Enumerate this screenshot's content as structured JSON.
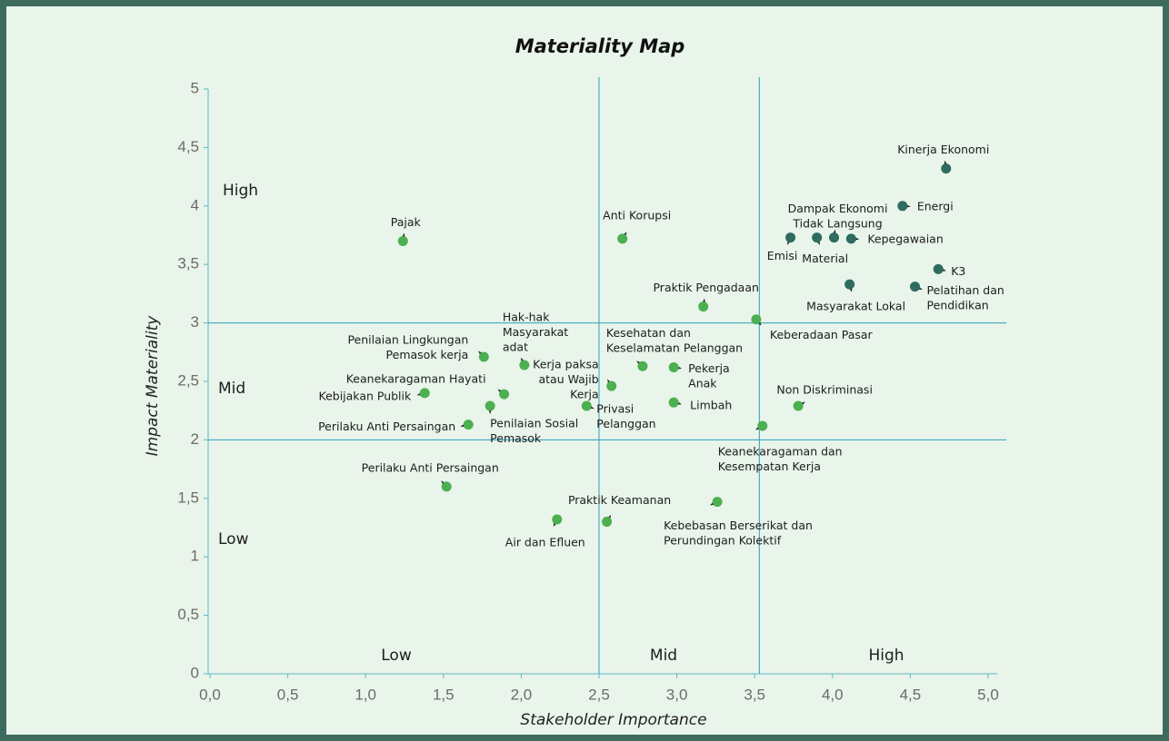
{
  "chart_data": {
    "type": "scatter",
    "title": "Materiality Map",
    "x_label": "Stakeholder Importance",
    "y_label": "Impact Materiality",
    "xlim": [
      0,
      5
    ],
    "ylim": [
      0,
      5
    ],
    "xticks": [
      {
        "value": 0,
        "label": "0,0"
      },
      {
        "value": 0.5,
        "label": "0,5"
      },
      {
        "value": 1,
        "label": "1,0"
      },
      {
        "value": 1.5,
        "label": "1,5"
      },
      {
        "value": 2,
        "label": "2,0"
      },
      {
        "value": 2.5,
        "label": "2,5"
      },
      {
        "value": 3,
        "label": "3,0"
      },
      {
        "value": 3.5,
        "label": "3,5"
      },
      {
        "value": 4,
        "label": "4,0"
      },
      {
        "value": 4.5,
        "label": "4,5"
      },
      {
        "value": 5,
        "label": "5,0"
      }
    ],
    "yticks": [
      0,
      {
        "value": 0.5,
        "label": "0,5"
      },
      1,
      {
        "value": 1.5,
        "label": "1,5"
      },
      2,
      {
        "value": 2.5,
        "label": "2,5"
      },
      3,
      {
        "value": 3.5,
        "label": "3,5"
      },
      4,
      {
        "value": 4.5,
        "label": "4,5"
      },
      5
    ],
    "dividers_x": [
      2.5,
      3.53
    ],
    "dividers_y": [
      2,
      3
    ],
    "zones_y": [
      "High",
      "Mid",
      "Low"
    ],
    "zones_x": [
      "Low",
      "Mid",
      "High"
    ],
    "series": [
      {
        "color": "#2f6b5f",
        "x": [
          4.73,
          4.45,
          4.01,
          4.12,
          3.73,
          3.9,
          4.68,
          4.11,
          4.53
        ],
        "values": [
          4.32,
          4.0,
          3.73,
          3.72,
          3.73,
          3.73,
          3.46,
          3.33,
          3.31
        ],
        "labels": [
          [
            "Kinerja Ekonomi"
          ],
          [
            "Energi"
          ],
          [
            "Dampak Ekonomi",
            "Tidak Langsung"
          ],
          [
            "Kepegawaian"
          ],
          [
            "Emisi"
          ],
          [
            "Material"
          ],
          [
            "K3"
          ],
          [
            "Masyarakat Lokal"
          ],
          [
            "Pelatihan dan",
            "Pendidikan"
          ]
        ]
      },
      {
        "color": "#4caf50",
        "x": [
          1.24,
          2.65,
          3.17,
          3.51,
          1.76,
          2.02,
          2.78,
          2.98,
          1.89,
          1.38,
          2.58,
          2.42,
          2.98,
          1.8,
          3.78,
          1.66,
          3.55,
          1.52,
          3.26,
          2.23,
          2.55
        ],
        "values": [
          3.7,
          3.72,
          3.14,
          3.03,
          2.71,
          2.64,
          2.63,
          2.62,
          2.39,
          2.4,
          2.46,
          2.29,
          2.32,
          2.29,
          2.29,
          2.13,
          2.12,
          1.6,
          1.47,
          1.32,
          1.3
        ],
        "labels": [
          [
            "Pajak"
          ],
          [
            "Anti Korupsi"
          ],
          [
            "Praktik Pengadaan"
          ],
          [
            "Keberadaan Pasar"
          ],
          [
            "Penilaian Lingkungan",
            "Pemasok kerja"
          ],
          [
            "Hak-hak",
            "Masyarakat",
            "adat"
          ],
          [
            "Kesehatan dan",
            "Keselamatan Pelanggan"
          ],
          [
            "Pekerja",
            "Anak"
          ],
          [
            "Keanekaragaman Hayati"
          ],
          [
            "Kebijakan Publik"
          ],
          [
            "Kerja paksa",
            "atau Wajib",
            "Kerja"
          ],
          [
            "Privasi",
            "Pelanggan"
          ],
          [
            "Limbah"
          ],
          [
            "Penilaian Sosial",
            "Pemasok"
          ],
          [
            "Non Diskriminasi"
          ],
          [
            "Perilaku Anti Persaingan"
          ],
          [
            "Keanekaragaman dan",
            "Kesempatan Kerja"
          ],
          [
            "Perilaku Anti Persaingan"
          ],
          [
            "Kebebasan Berserikat dan",
            "Perundingan Kolektif"
          ],
          [
            "Air dan Efluen"
          ],
          [
            "Praktik Keamanan"
          ]
        ]
      }
    ]
  }
}
